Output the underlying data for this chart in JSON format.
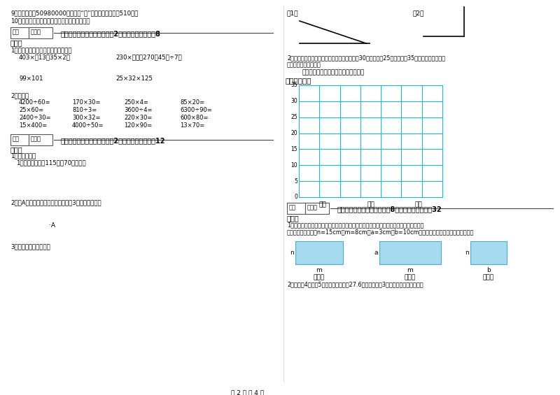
{
  "page_bg": "#ffffff",
  "text_color": "#000000",
  "grid_color": "#00bcd4",
  "box_color": "#87ceeb",
  "line9": "9．（　　）抂50980000改写成用“万”作单位的近似数是510万。",
  "line10": "10．（　　）等边三角形不一定是锐角三角形。",
  "score_box1": "得分",
  "score_box2": "评卷人",
  "sec4_title": "四、看清题目，细心计算（八2小题，每题四分，八8",
  "sec4_sub": "分）。",
  "sec4_q1": "1、计算下面各题，能简算的要简算。",
  "sec4_e1": "403×（13＋35×2）",
  "sec4_e2": "230×《＋（270＋45）÷7》",
  "sec4_e3": "99×101",
  "sec4_e4": "25×32×125",
  "sec4_q2": "2、口算。",
  "oral_calcs": [
    [
      "4200÷60=",
      "170×30=",
      "250×4=",
      "85×20="
    ],
    [
      "25×60=",
      "810÷3=",
      "3600÷4=",
      "6300÷90="
    ],
    [
      "2400÷30=",
      "300×32=",
      "220×30=",
      "600×80="
    ],
    [
      "15×400=",
      "4000÷50=",
      "120×90=",
      "13×70="
    ]
  ],
  "sec5_title": "五、认真思考，综合能力（八2小题，每题六分，八12",
  "sec5_sub": "分）。",
  "sec5_q1": "1、实践操作。",
  "sec5_q1a": "1、分别画出一个115度和70度的角。",
  "sec5_q2": "2、过A点画一条直线，在直线上量出3厘米长的线段。",
  "sec5_dotA": "·A",
  "sec5_q3": "3、量出下面角的度数。",
  "right_label1": "（1）",
  "right_label2": "（2）",
  "chart_desc1": "2、某服装厂第一季度生产服装情况如下：男装30万套，童装25万套，女装35万套，根据数据把下",
  "chart_desc2": "面的统计图补充完整。",
  "chart_title": "某服装厂第一季度生产服装情况统计图",
  "chart_ylabel": "数量（万套）",
  "chart_yticks": [
    0,
    5,
    10,
    15,
    20,
    25,
    30,
    35
  ],
  "chart_xticks": [
    "男装",
    "童装",
    "女装"
  ],
  "sec6_title": "六、应用知识，解决问题（八8小题，每题四分，八32",
  "sec6_sub": "分）。",
  "sec6_q1a": "1、第（　　）个和（　　）个长方形可以拼成一个新的大长方形，拼成后的面积用字母表",
  "sec6_q1b": "示是（　　），如果n=15cm，m=8cm，a=3cm，b=10cm，那拼成后的面积是多少平方厘米？",
  "sec6_q2": "2、妈妈买4克梨，5千克苹果，共用去27.6元，每千克梨3元，每千克苹果多少元？",
  "rect1_left": "n",
  "rect1_bot": "m",
  "rect1_num": "（一）",
  "rect2_left": "a",
  "rect2_bot": "m",
  "rect2_num": "（二）",
  "rect3_left": "n",
  "rect3_bot": "b",
  "rect3_num": "（三）",
  "footer": "第 2 页 八 4 页"
}
